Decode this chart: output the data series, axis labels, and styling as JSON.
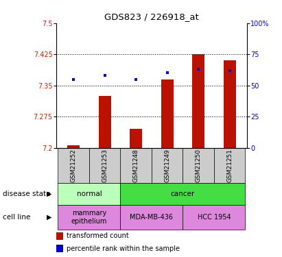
{
  "title": "GDS823 / 226918_at",
  "samples": [
    "GSM21252",
    "GSM21253",
    "GSM21248",
    "GSM21249",
    "GSM21250",
    "GSM21251"
  ],
  "transformed_counts": [
    7.205,
    7.325,
    7.245,
    7.365,
    7.425,
    7.41
  ],
  "percentile_ranks": [
    55,
    58,
    55,
    60,
    63,
    62
  ],
  "ylim_left": [
    7.2,
    7.5
  ],
  "ylim_right": [
    0,
    100
  ],
  "yticks_left": [
    7.2,
    7.275,
    7.35,
    7.425,
    7.5
  ],
  "yticks_right": [
    0,
    25,
    50,
    75,
    100
  ],
  "ytick_labels_left": [
    "7.2",
    "7.275",
    "7.35",
    "7.425",
    "7.5"
  ],
  "ytick_labels_right": [
    "0",
    "25",
    "50",
    "75",
    "100%"
  ],
  "bar_color": "#bb1100",
  "dot_color": "#0000cc",
  "bar_bottom": 7.2,
  "dot_gridlines": [
    7.275,
    7.35,
    7.425
  ],
  "disease_state": [
    {
      "label": "normal",
      "cols": [
        0,
        1
      ],
      "color": "#bbffbb"
    },
    {
      "label": "cancer",
      "cols": [
        2,
        3,
        4,
        5
      ],
      "color": "#44dd44"
    }
  ],
  "cell_line": [
    {
      "label": "mammary\nepithelium",
      "cols": [
        0,
        1
      ],
      "color": "#dd88dd"
    },
    {
      "label": "MDA-MB-436",
      "cols": [
        2,
        3
      ],
      "color": "#dd88dd"
    },
    {
      "label": "HCC 1954",
      "cols": [
        4,
        5
      ],
      "color": "#dd88dd"
    }
  ],
  "legend_items": [
    {
      "label": "transformed count",
      "color": "#bb1100"
    },
    {
      "label": "percentile rank within the sample",
      "color": "#0000cc"
    }
  ],
  "sample_bg_color": "#cccccc",
  "label_disease_state": "disease state",
  "label_cell_line": "cell line"
}
